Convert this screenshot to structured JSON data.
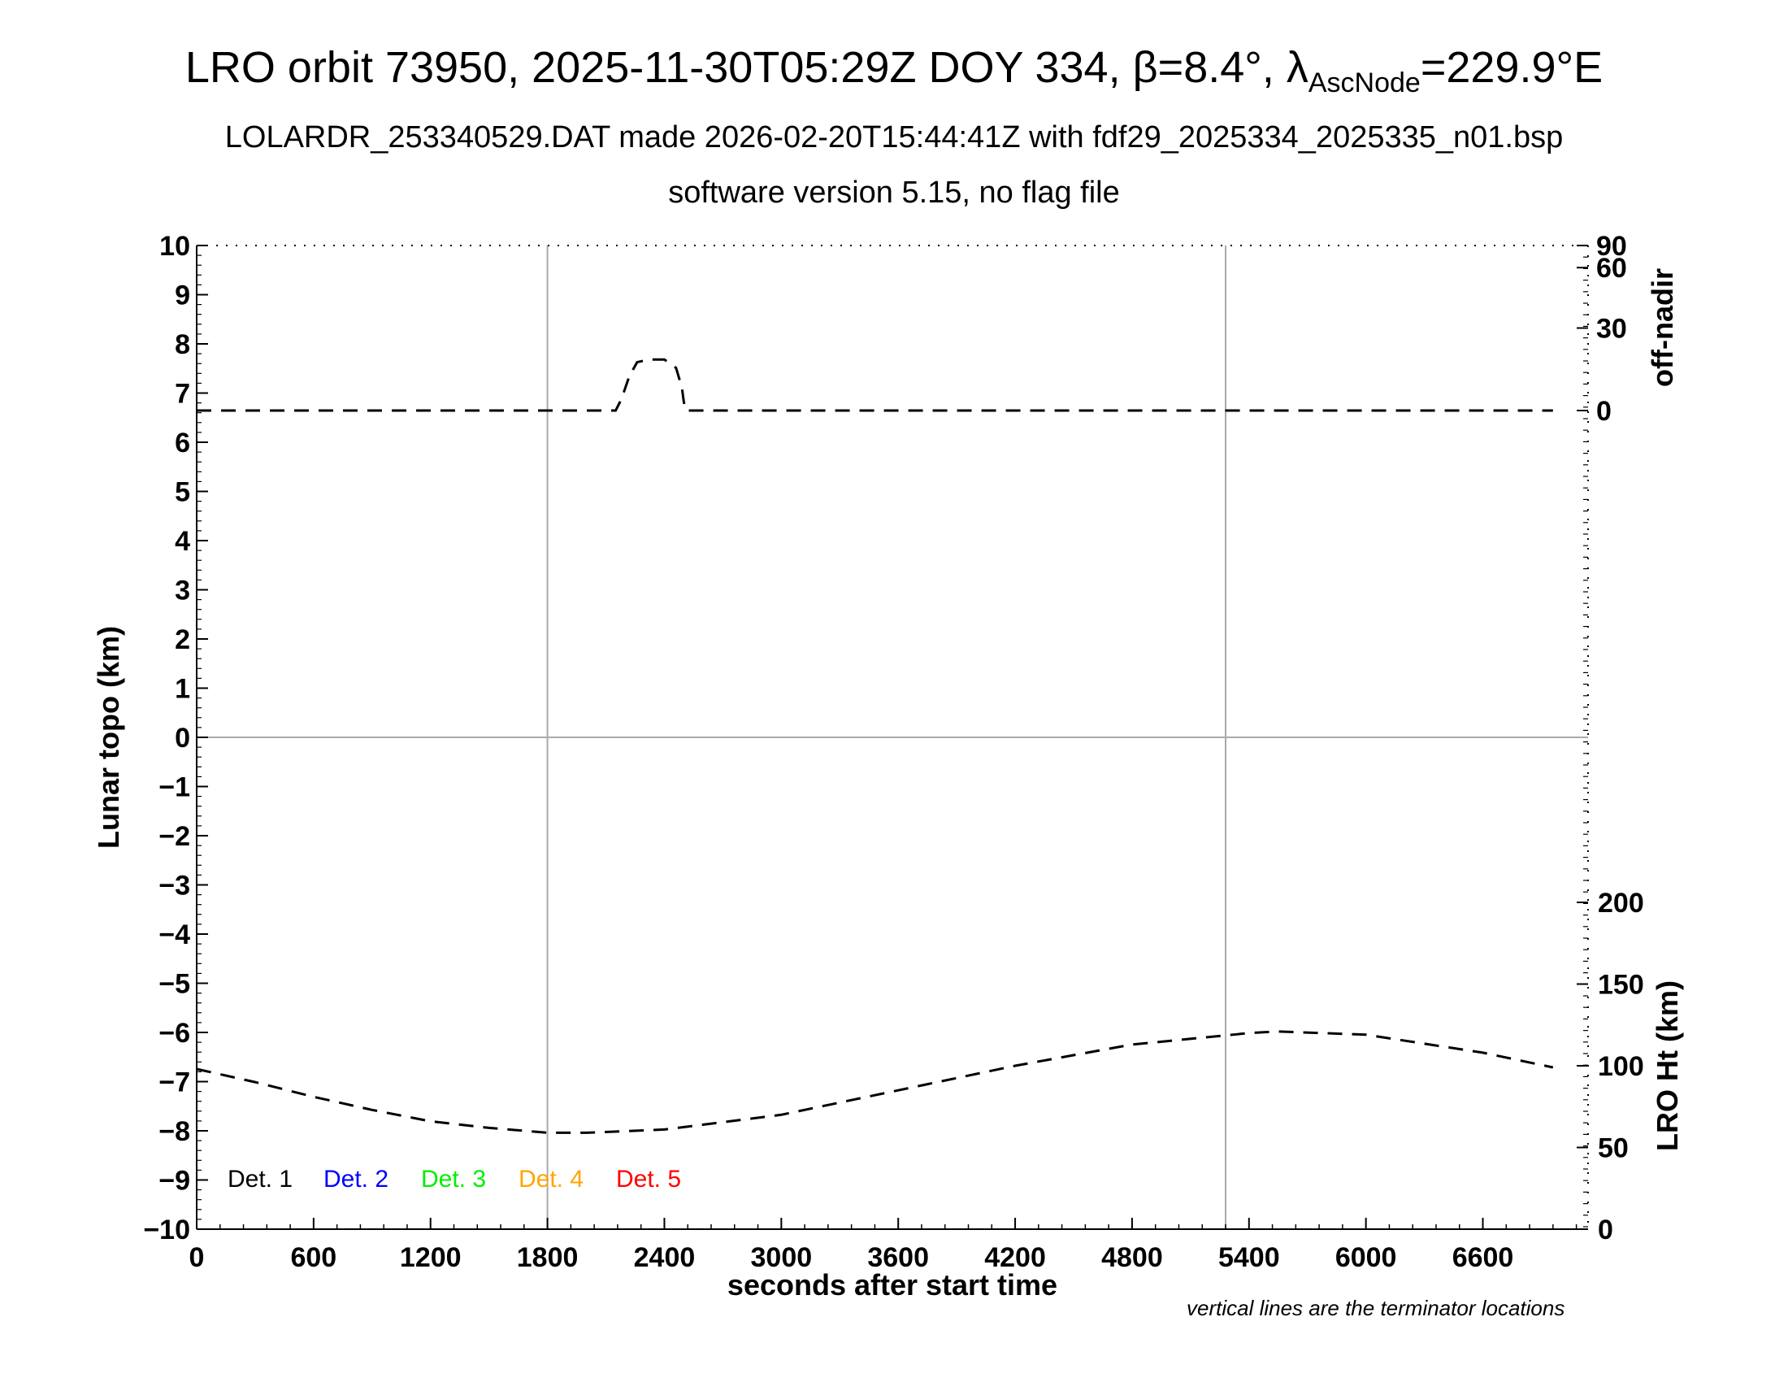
{
  "header": {
    "title_prefix": "LRO orbit 73950, 2025-11-30T05:29Z DOY 334, β=8.4°, λ",
    "title_sub": "AscNode",
    "title_suffix": "=229.9°E",
    "subtitle": "LOLARDR_253340529.DAT made 2026-02-20T15:44:41Z with fdf29_2025334_2025335_n01.bsp",
    "subtitle2": "software version 5.15, no flag file"
  },
  "footer": {
    "note": "vertical lines are the terminator locations"
  },
  "chart_data": {
    "type": "line",
    "xlabel": "seconds after start time",
    "ylabel": "Lunar topo (km)",
    "y2label_top": "off-nadir",
    "y2label_bottom": "LRO Ht (km)",
    "xlim": [
      0,
      7140
    ],
    "ylim": [
      -10,
      10
    ],
    "x_ticks": [
      "0",
      "600",
      "1200",
      "1800",
      "2400",
      "3000",
      "3600",
      "4200",
      "4800",
      "5400",
      "6000",
      "6600"
    ],
    "y_ticks": [
      "10",
      "9",
      "8",
      "7",
      "6",
      "5",
      "4",
      "3",
      "2",
      "1",
      "0",
      "−1",
      "−2",
      "−3",
      "−4",
      "−5",
      "−6",
      "−7",
      "−8",
      "−9",
      "−10"
    ],
    "off_nadir_ticks": [
      "90",
      "60",
      "30",
      "0"
    ],
    "lro_ht_ticks": [
      "200",
      "150",
      "100",
      "50",
      "0"
    ],
    "terminator_lines_x": [
      1800,
      5280
    ],
    "legend": [
      {
        "label": "Det. 1",
        "color": "#000000"
      },
      {
        "label": "Det. 2",
        "color": "#0000ff"
      },
      {
        "label": "Det. 3",
        "color": "#00ee00"
      },
      {
        "label": "Det. 4",
        "color": "#ffa500"
      },
      {
        "label": "Det. 5",
        "color": "#ff0000"
      }
    ],
    "series": [
      {
        "axis": "off-nadir (deg)",
        "x": [
          0,
          600,
          1200,
          1800,
          2100,
          2150,
          2180,
          2220,
          2260,
          2320,
          2400,
          2460,
          2490,
          2500,
          2510,
          3000,
          3600,
          4200,
          4800,
          5400,
          6000,
          6600,
          6960
        ],
        "values": [
          0,
          0,
          0,
          0,
          0,
          0,
          4,
          12,
          17,
          18,
          18,
          15,
          8,
          3,
          0,
          0,
          0,
          0,
          0,
          0,
          0,
          0,
          0
        ]
      },
      {
        "axis": "LRO Ht (km)",
        "x": [
          0,
          300,
          600,
          900,
          1200,
          1500,
          1800,
          2000,
          2400,
          3000,
          3600,
          4200,
          4800,
          5400,
          5550,
          6000,
          6600,
          6960
        ],
        "values": [
          98,
          90,
          81,
          73,
          66,
          62,
          59,
          59,
          61,
          70,
          85,
          100,
          113,
          120,
          121,
          119,
          108,
          99
        ]
      }
    ],
    "grid": false
  }
}
